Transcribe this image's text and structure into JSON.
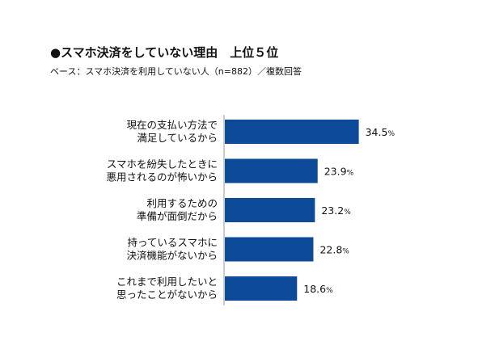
{
  "title": "●スマホ決済をしていない理由　上位５位",
  "subtitle": "ベース：スマホ決済を利用していない人（n=882）／複数回答",
  "chart_data": {
    "type": "bar",
    "orientation": "horizontal",
    "categories": [
      [
        "現在の支払い方法で",
        "満足しているから"
      ],
      [
        "スマホを紛失したときに",
        "悪用されるのが怖いから"
      ],
      [
        "利用するための",
        "準備が面倒だから"
      ],
      [
        "持っているスマホに",
        "決済機能がないから"
      ],
      [
        "これまで利用したいと",
        "思ったことがないから"
      ]
    ],
    "values": [
      34.5,
      23.9,
      23.2,
      22.8,
      18.6
    ],
    "value_labels": [
      "34.5",
      "23.9",
      "23.2",
      "22.8",
      "18.6"
    ],
    "unit": "%",
    "bar_color": "#0d4a97",
    "xlim": [
      0,
      100
    ],
    "grid": false,
    "axis_line": true
  }
}
